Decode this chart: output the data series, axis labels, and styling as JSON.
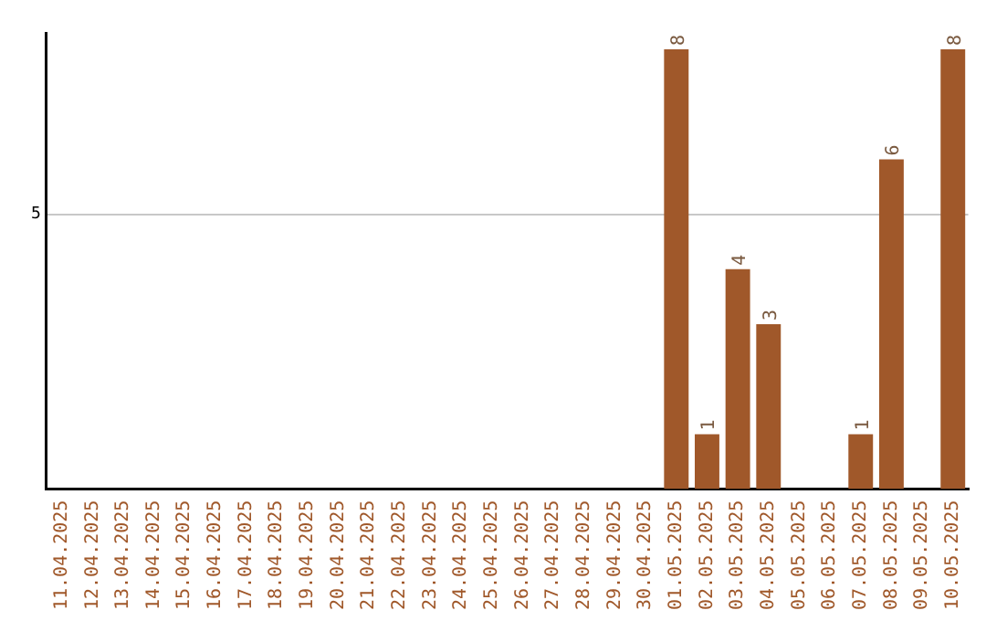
{
  "chart_data": {
    "type": "bar",
    "categories": [
      "11.04.2025",
      "12.04.2025",
      "13.04.2025",
      "14.04.2025",
      "15.04.2025",
      "16.04.2025",
      "17.04.2025",
      "18.04.2025",
      "19.04.2025",
      "20.04.2025",
      "21.04.2025",
      "22.04.2025",
      "23.04.2025",
      "24.04.2025",
      "25.04.2025",
      "26.04.2025",
      "27.04.2025",
      "28.04.2025",
      "29.04.2025",
      "30.04.2025",
      "01.05.2025",
      "02.05.2025",
      "03.05.2025",
      "04.05.2025",
      "05.05.2025",
      "06.05.2025",
      "07.05.2025",
      "08.05.2025",
      "09.05.2025",
      "10.05.2025"
    ],
    "values": [
      null,
      null,
      null,
      null,
      null,
      null,
      null,
      null,
      null,
      null,
      null,
      null,
      null,
      null,
      null,
      null,
      null,
      null,
      null,
      null,
      8,
      1,
      4,
      3,
      null,
      null,
      1,
      6,
      null,
      8
    ],
    "data_labels": true,
    "color": "#a0582a",
    "ylim": [
      0,
      8.3
    ],
    "yticks": [
      5
    ],
    "grid": "y",
    "legend": false
  }
}
